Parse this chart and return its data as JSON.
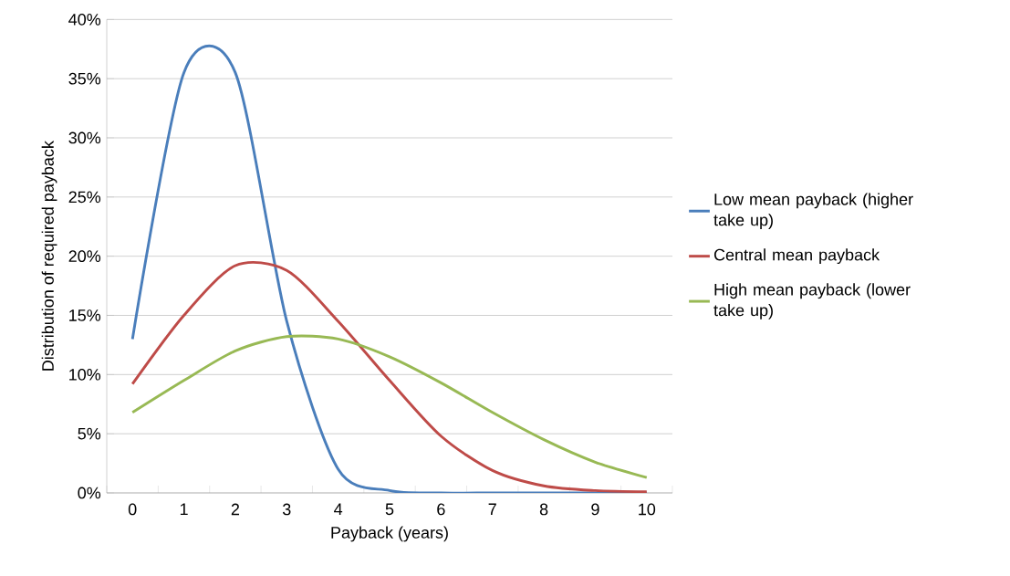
{
  "chart_data": {
    "type": "line",
    "xlabel": "Payback (years)",
    "ylabel": "Distribution of required payback",
    "categories": [
      "0",
      "1",
      "2",
      "3",
      "4",
      "5",
      "6",
      "7",
      "8",
      "9",
      "10"
    ],
    "series": [
      {
        "name": "Low mean payback (higher take up)",
        "color": "#4a7ebb",
        "values": [
          13,
          35.5,
          35.5,
          14.5,
          2,
          0.2,
          0,
          0,
          0,
          0,
          0
        ]
      },
      {
        "name": "Central mean payback",
        "color": "#be4b48",
        "values": [
          9.2,
          15,
          19.2,
          18.8,
          14.5,
          9.5,
          4.8,
          1.9,
          0.6,
          0.2,
          0.1
        ]
      },
      {
        "name": "High mean payback (lower take up)",
        "color": "#98b954",
        "values": [
          6.8,
          9.5,
          12,
          13.2,
          13,
          11.5,
          9.3,
          6.8,
          4.5,
          2.6,
          1.3
        ]
      }
    ],
    "ylim": [
      0,
      40
    ],
    "yticks": [
      {
        "value": 0,
        "label": "0%"
      },
      {
        "value": 5,
        "label": "5%"
      },
      {
        "value": 10,
        "label": "10%"
      },
      {
        "value": 15,
        "label": "15%"
      },
      {
        "value": 20,
        "label": "20%"
      },
      {
        "value": 25,
        "label": "25%"
      },
      {
        "value": 30,
        "label": "30%"
      },
      {
        "value": 35,
        "label": "35%"
      },
      {
        "value": 40,
        "label": "40%"
      }
    ],
    "grid": "y",
    "legend": "right"
  }
}
